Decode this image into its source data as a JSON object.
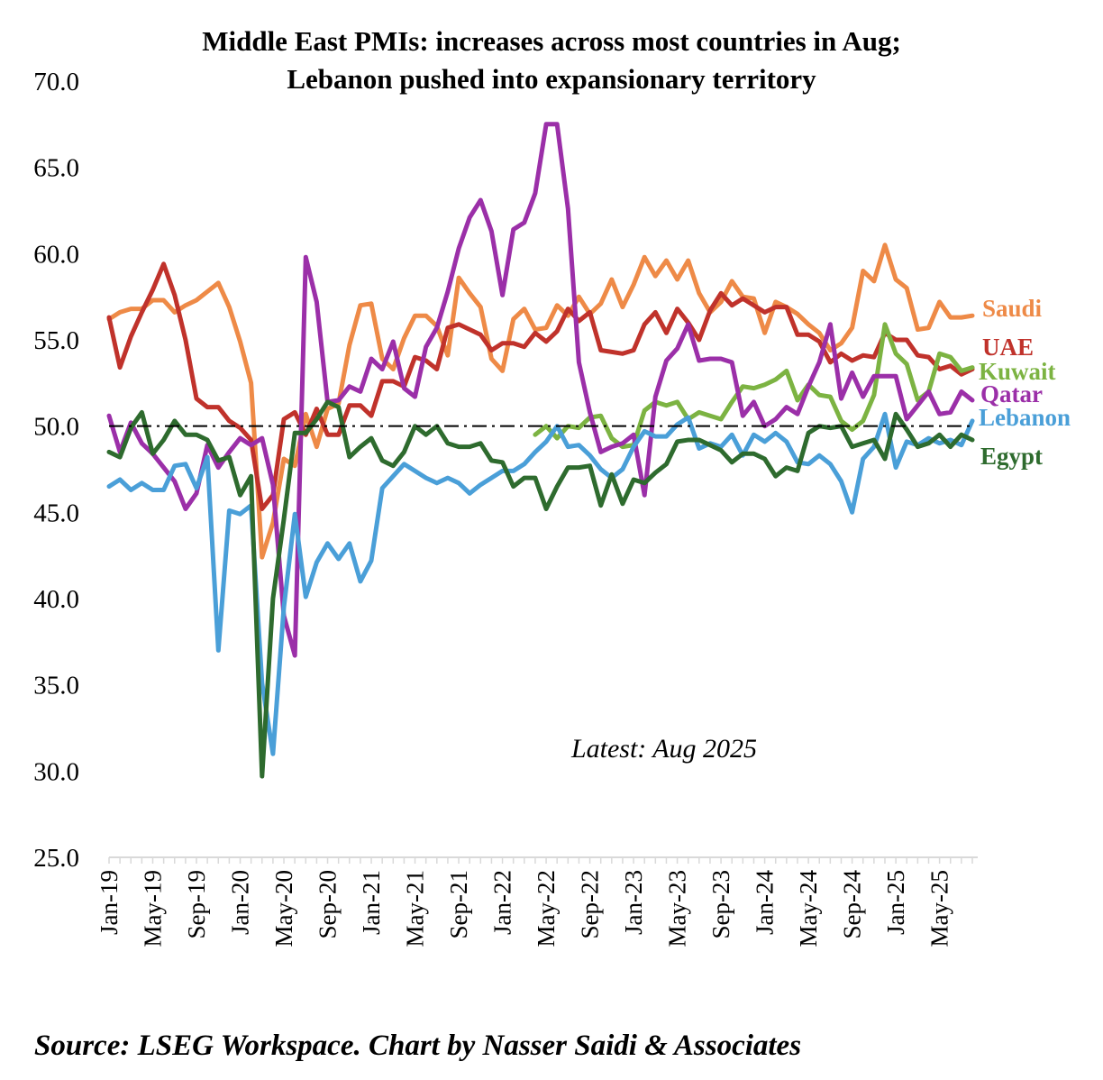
{
  "chart_data": {
    "type": "line",
    "title": "Middle East PMIs: increases across most countries in Aug;",
    "subtitle": "Lebanon pushed into expansionary territory",
    "ylim": [
      25,
      70
    ],
    "yticks": [
      "25.0",
      "30.0",
      "35.0",
      "40.0",
      "45.0",
      "50.0",
      "55.0",
      "60.0",
      "65.0",
      "70.0"
    ],
    "reference_line": 50,
    "x_start": "Jan-19",
    "x_count": 80,
    "xtick_labels": [
      "Jan-19",
      "May-19",
      "Sep-19",
      "Jan-20",
      "May-20",
      "Sep-20",
      "Jan-21",
      "May-21",
      "Sep-21",
      "Jan-22",
      "May-22",
      "Sep-22",
      "Jan-23",
      "May-23",
      "Sep-23",
      "Jan-24",
      "May-24",
      "Sep-24",
      "Jan-25",
      "May-25"
    ],
    "annotation": "Latest: Aug 2025",
    "source": "Source: LSEG Workspace. Chart by Nasser Saidi & Associates",
    "legend_placement": "right",
    "series": [
      {
        "name": "Saudi",
        "color": "#EE8A47",
        "values": [
          56.2,
          56.6,
          56.8,
          56.8,
          57.3,
          57.3,
          56.6,
          57.0,
          57.3,
          57.8,
          58.3,
          56.9,
          54.9,
          52.5,
          42.4,
          44.4,
          48.1,
          47.7,
          50.7,
          48.8,
          51.0,
          51.3,
          54.7,
          57.0,
          57.1,
          53.9,
          53.3,
          55.1,
          56.4,
          56.4,
          55.8,
          54.1,
          58.6,
          57.7,
          56.9,
          53.9,
          53.2,
          56.2,
          56.8,
          55.6,
          55.7,
          57.0,
          56.4,
          57.5,
          56.5,
          57.1,
          58.5,
          56.9,
          58.2,
          59.8,
          58.7,
          59.6,
          58.5,
          59.6,
          57.7,
          56.6,
          57.2,
          58.4,
          57.5,
          57.4,
          55.4,
          57.2,
          56.9,
          56.5,
          55.9,
          55.4,
          54.4,
          54.8,
          55.7,
          59.0,
          58.4,
          60.5,
          58.5,
          58.0,
          55.6,
          55.7,
          57.2,
          56.3,
          56.3,
          56.4
        ]
      },
      {
        "name": "UAE",
        "color": "#C0322B",
        "values": [
          56.3,
          53.4,
          55.2,
          56.6,
          57.9,
          59.4,
          57.6,
          55.0,
          51.6,
          51.1,
          51.1,
          50.3,
          49.9,
          49.2,
          45.2,
          46.0,
          50.4,
          50.8,
          49.5,
          51.0,
          49.5,
          49.5,
          51.2,
          51.2,
          50.6,
          52.6,
          52.6,
          52.3,
          54.0,
          53.8,
          53.3,
          55.7,
          55.9,
          55.6,
          55.3,
          54.4,
          54.8,
          54.8,
          54.6,
          55.4,
          54.9,
          55.5,
          56.8,
          56.1,
          56.6,
          54.4,
          54.3,
          54.2,
          54.4,
          55.9,
          56.6,
          55.4,
          56.8,
          56.0,
          55.0,
          56.7,
          57.7,
          57.0,
          57.4,
          57.0,
          56.6,
          56.9,
          56.9,
          55.3,
          55.3,
          54.9,
          53.7,
          54.2,
          53.8,
          54.1,
          54.0,
          55.4,
          55.0,
          55.0,
          54.1,
          54.0,
          53.3,
          53.5,
          53.0,
          53.3
        ]
      },
      {
        "name": "Kuwait",
        "color": "#7CB342",
        "values": [
          null,
          null,
          null,
          null,
          null,
          null,
          null,
          null,
          null,
          null,
          null,
          null,
          null,
          null,
          null,
          null,
          null,
          null,
          null,
          null,
          null,
          null,
          null,
          null,
          null,
          null,
          null,
          null,
          null,
          null,
          null,
          null,
          null,
          null,
          null,
          null,
          null,
          null,
          null,
          49.5,
          50.0,
          49.3,
          50.0,
          49.9,
          50.5,
          50.6,
          49.3,
          48.8,
          48.9,
          50.9,
          51.4,
          51.2,
          51.4,
          50.4,
          50.8,
          50.6,
          50.4,
          51.4,
          52.3,
          52.2,
          52.4,
          52.7,
          53.2,
          51.5,
          52.4,
          51.8,
          51.7,
          50.3,
          49.8,
          50.3,
          51.8,
          55.9,
          54.2,
          53.6,
          51.5,
          52.0,
          54.2,
          54.0,
          53.2,
          53.4
        ]
      },
      {
        "name": "Qatar",
        "color": "#9B2FA8",
        "values": [
          50.6,
          48.5,
          50.2,
          49.0,
          48.4,
          47.6,
          46.8,
          45.2,
          46.1,
          48.9,
          47.6,
          48.5,
          49.3,
          48.9,
          49.3,
          46.6,
          39.0,
          36.7,
          59.8,
          57.2,
          51.4,
          51.5,
          52.3,
          52.0,
          53.9,
          53.3,
          54.9,
          52.2,
          51.7,
          54.6,
          55.7,
          57.8,
          60.3,
          62.1,
          63.1,
          61.3,
          57.6,
          61.4,
          61.8,
          63.5,
          67.5,
          67.5,
          62.6,
          53.7,
          50.8,
          48.5,
          48.8,
          49.0,
          49.5,
          46.0,
          51.7,
          53.8,
          54.5,
          55.9,
          53.8,
          53.9,
          53.9,
          53.7,
          50.6,
          51.4,
          50.0,
          50.4,
          51.1,
          50.7,
          52.3,
          53.7,
          55.9,
          51.6,
          53.1,
          51.7,
          52.9,
          52.9,
          52.9,
          50.4,
          51.2,
          52.0,
          50.7,
          50.8,
          52.0,
          51.5
        ]
      },
      {
        "name": "Lebanon",
        "color": "#4A9FD8",
        "values": [
          46.5,
          46.9,
          46.3,
          46.7,
          46.3,
          46.3,
          47.7,
          47.8,
          46.4,
          48.2,
          37.0,
          45.1,
          44.9,
          45.4,
          35.1,
          31.0,
          39.5,
          44.9,
          40.1,
          42.1,
          43.2,
          42.3,
          43.2,
          41.0,
          42.2,
          46.4,
          47.1,
          47.8,
          47.4,
          47.0,
          46.7,
          47.0,
          46.7,
          46.1,
          46.6,
          47.0,
          47.4,
          47.4,
          47.8,
          48.5,
          49.1,
          50.0,
          48.8,
          48.9,
          48.3,
          47.5,
          47.0,
          47.5,
          48.8,
          49.7,
          49.4,
          49.4,
          50.1,
          50.5,
          48.7,
          49.0,
          48.8,
          49.5,
          48.3,
          49.5,
          49.1,
          49.6,
          49.1,
          47.9,
          47.8,
          48.3,
          47.8,
          46.8,
          45.0,
          48.1,
          48.8,
          50.7,
          47.6,
          49.1,
          48.9,
          49.3,
          49.0,
          49.2,
          48.9,
          50.3
        ]
      },
      {
        "name": "Egypt",
        "color": "#2E6B2E",
        "values": [
          48.5,
          48.2,
          49.9,
          50.8,
          48.4,
          49.2,
          50.3,
          49.5,
          49.5,
          49.2,
          48.0,
          48.2,
          46.0,
          47.1,
          29.7,
          40.0,
          44.6,
          49.6,
          49.6,
          50.4,
          51.4,
          51.1,
          48.2,
          48.8,
          49.3,
          48.0,
          47.7,
          48.5,
          50.0,
          49.5,
          50.0,
          49.0,
          48.8,
          48.8,
          49.0,
          48.0,
          47.9,
          46.5,
          47.0,
          47.0,
          45.2,
          46.5,
          47.6,
          47.6,
          47.7,
          45.4,
          47.2,
          45.5,
          46.9,
          46.7,
          47.3,
          47.8,
          49.1,
          49.2,
          49.2,
          48.9,
          48.6,
          47.9,
          48.4,
          48.4,
          48.1,
          47.1,
          47.6,
          47.4,
          49.6,
          50.0,
          49.9,
          50.0,
          48.8,
          49.0,
          49.2,
          48.1,
          50.7,
          49.8,
          48.8,
          49.0,
          49.5,
          48.8,
          49.5,
          49.2
        ]
      }
    ]
  },
  "series_labels": {
    "saudi": "Saudi",
    "uae": "UAE",
    "kuwait": "Kuwait",
    "qatar": "Qatar",
    "lebanon": "Lebanon",
    "egypt": "Egypt"
  }
}
